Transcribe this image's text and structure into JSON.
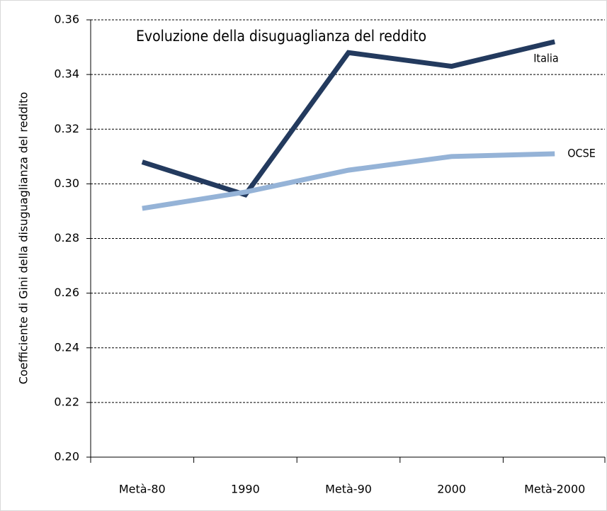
{
  "chart_data": {
    "type": "line",
    "title": "Evoluzione della disuguaglianza del reddito",
    "y_label": "Coefficiente di Gini della disuguaglianza del reddito",
    "categories": [
      "Metà-80",
      "1990",
      "Metà-90",
      "2000",
      "Metà-2000"
    ],
    "series": [
      {
        "name": "Italia",
        "color": "#233a5e",
        "values": [
          0.308,
          0.296,
          0.348,
          0.343,
          0.352
        ]
      },
      {
        "name": "OCSE",
        "color": "#95b3d7",
        "values": [
          0.291,
          0.297,
          0.305,
          0.31,
          0.311
        ]
      }
    ],
    "ylim": [
      0.2,
      0.36
    ],
    "yticks": [
      {
        "value": 0.2,
        "label": "0.20"
      },
      0.22,
      0.24,
      0.26,
      0.28,
      {
        "value": 0.3,
        "label": "0.30"
      },
      0.32,
      0.34,
      0.36
    ],
    "grid": true
  }
}
